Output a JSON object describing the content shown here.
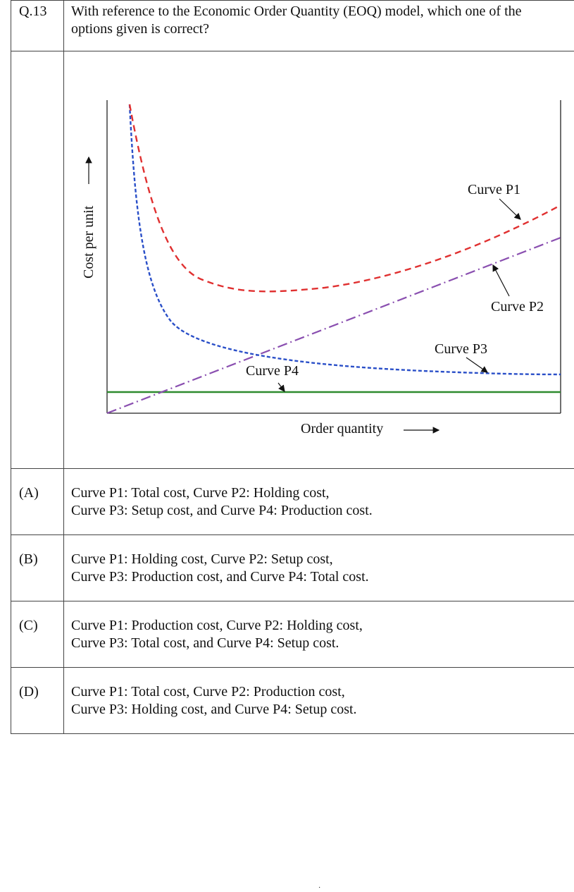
{
  "question": {
    "number": "Q.13",
    "text_line1": "With reference to the Economic Order Quantity (EOQ) model, which one of the",
    "text_line2": "options given is correct?"
  },
  "chart_data": {
    "type": "line",
    "xlabel": "Order quantity",
    "ylabel": "Cost per unit",
    "grid": false,
    "legend": "none",
    "annotations": [
      "Curve P1",
      "Curve P2",
      "Curve P3",
      "Curve P4"
    ],
    "series": [
      {
        "name": "Curve P1",
        "style": "dashed",
        "color": "#e03030",
        "shape": "U-shaped: high at low order quantity, minimum near middle-left, rising to the right"
      },
      {
        "name": "Curve P2",
        "style": "dash-dot",
        "color": "#8a4fb0",
        "shape": "straight line rising from origin"
      },
      {
        "name": "Curve P3",
        "style": "dotted-dashed",
        "color": "#2a4fc8",
        "shape": "hyperbolic decreasing"
      },
      {
        "name": "Curve P4",
        "style": "solid",
        "color": "#2e8b2e",
        "shape": "horizontal constant"
      }
    ]
  },
  "options": [
    {
      "label": "(A)",
      "line1": "Curve P1: Total cost, Curve P2: Holding cost,",
      "line2": "Curve P3: Setup cost, and Curve P4: Production cost."
    },
    {
      "label": "(B)",
      "line1": "Curve P1: Holding cost, Curve P2: Setup cost,",
      "line2": "Curve P3: Production cost, and Curve P4: Total cost."
    },
    {
      "label": "(C)",
      "line1": "Curve P1: Production cost, Curve P2: Holding cost,",
      "line2": "Curve P3: Total cost, and Curve P4: Setup cost."
    },
    {
      "label": "(D)",
      "line1": "Curve P1: Total cost, Curve P2: Production cost,",
      "line2": "Curve P3: Holding cost, and Curve P4: Setup cost."
    }
  ],
  "footer": {
    "page_mark": "·"
  }
}
